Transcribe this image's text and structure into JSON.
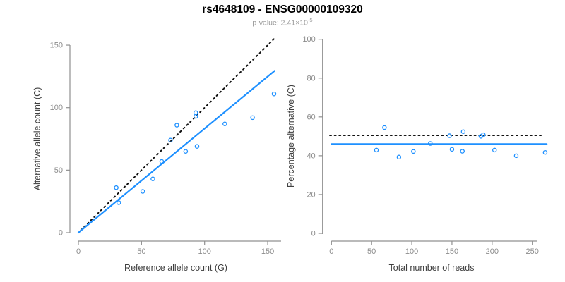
{
  "header": {
    "title": "rs4648109 - ENSG00000109320",
    "pvalue_label": "p-value: 2.41×10",
    "pvalue_exponent": "-5"
  },
  "colors": {
    "accent_blue": "#1E90FF",
    "reference_black": "#111111",
    "axis_line_gray": "#909090",
    "tick_label_gray": "#8c8c8c",
    "axis_title_dark": "#404040",
    "subtitle_gray": "#999999"
  },
  "chart_data": [
    {
      "id": "allele-counts",
      "type": "scatter",
      "xlabel": "Reference allele count (G)",
      "ylabel": "Alternative allele count (C)",
      "xticks": [
        0,
        50,
        100,
        150
      ],
      "yticks": [
        0,
        50,
        100,
        150
      ],
      "xlim": [
        0,
        160
      ],
      "ylim": [
        0,
        155
      ],
      "grid": false,
      "points": [
        [
          30,
          36
        ],
        [
          32,
          24
        ],
        [
          51,
          33
        ],
        [
          59,
          43
        ],
        [
          66,
          57
        ],
        [
          73,
          74
        ],
        [
          78,
          86
        ],
        [
          85,
          65
        ],
        [
          93,
          93
        ],
        [
          93,
          96
        ],
        [
          94,
          69
        ],
        [
          116,
          87
        ],
        [
          138,
          92
        ],
        [
          155,
          111
        ]
      ],
      "lines": [
        {
          "name": "identity-line",
          "style": "dotted",
          "color": "#111111",
          "x1": 2,
          "y1": 2,
          "x2": 155,
          "y2": 155
        },
        {
          "name": "fit-line",
          "style": "solid",
          "color": "#1E90FF",
          "x1": 0,
          "y1": 0,
          "x2": 155.5,
          "y2": 129.5
        }
      ]
    },
    {
      "id": "percentage-reads",
      "type": "scatter",
      "xlabel": "Total number of reads",
      "ylabel": "Percentage alternative (C)",
      "xticks": [
        0,
        50,
        100,
        150,
        200,
        250
      ],
      "yticks": [
        0,
        20,
        40,
        60,
        80,
        100
      ],
      "xlim": [
        0,
        268
      ],
      "ylim": [
        0,
        100
      ],
      "grid": false,
      "points": [
        [
          66,
          54.5
        ],
        [
          56,
          42.9
        ],
        [
          84,
          39.3
        ],
        [
          102,
          42.2
        ],
        [
          123,
          46.3
        ],
        [
          147,
          50.3
        ],
        [
          164,
          52.4
        ],
        [
          150,
          43.3
        ],
        [
          186,
          50.0
        ],
        [
          189,
          50.8
        ],
        [
          163,
          42.3
        ],
        [
          203,
          42.9
        ],
        [
          230,
          40.0
        ],
        [
          266,
          41.7
        ]
      ],
      "lines": [
        {
          "name": "expected-percentage-line",
          "style": "dotted",
          "color": "#111111",
          "x1": -2,
          "y1": 50.5,
          "x2": 264,
          "y2": 50.5
        },
        {
          "name": "fit-line",
          "style": "solid",
          "color": "#1E90FF",
          "x1": 0,
          "y1": 46,
          "x2": 268,
          "y2": 46
        }
      ]
    }
  ]
}
